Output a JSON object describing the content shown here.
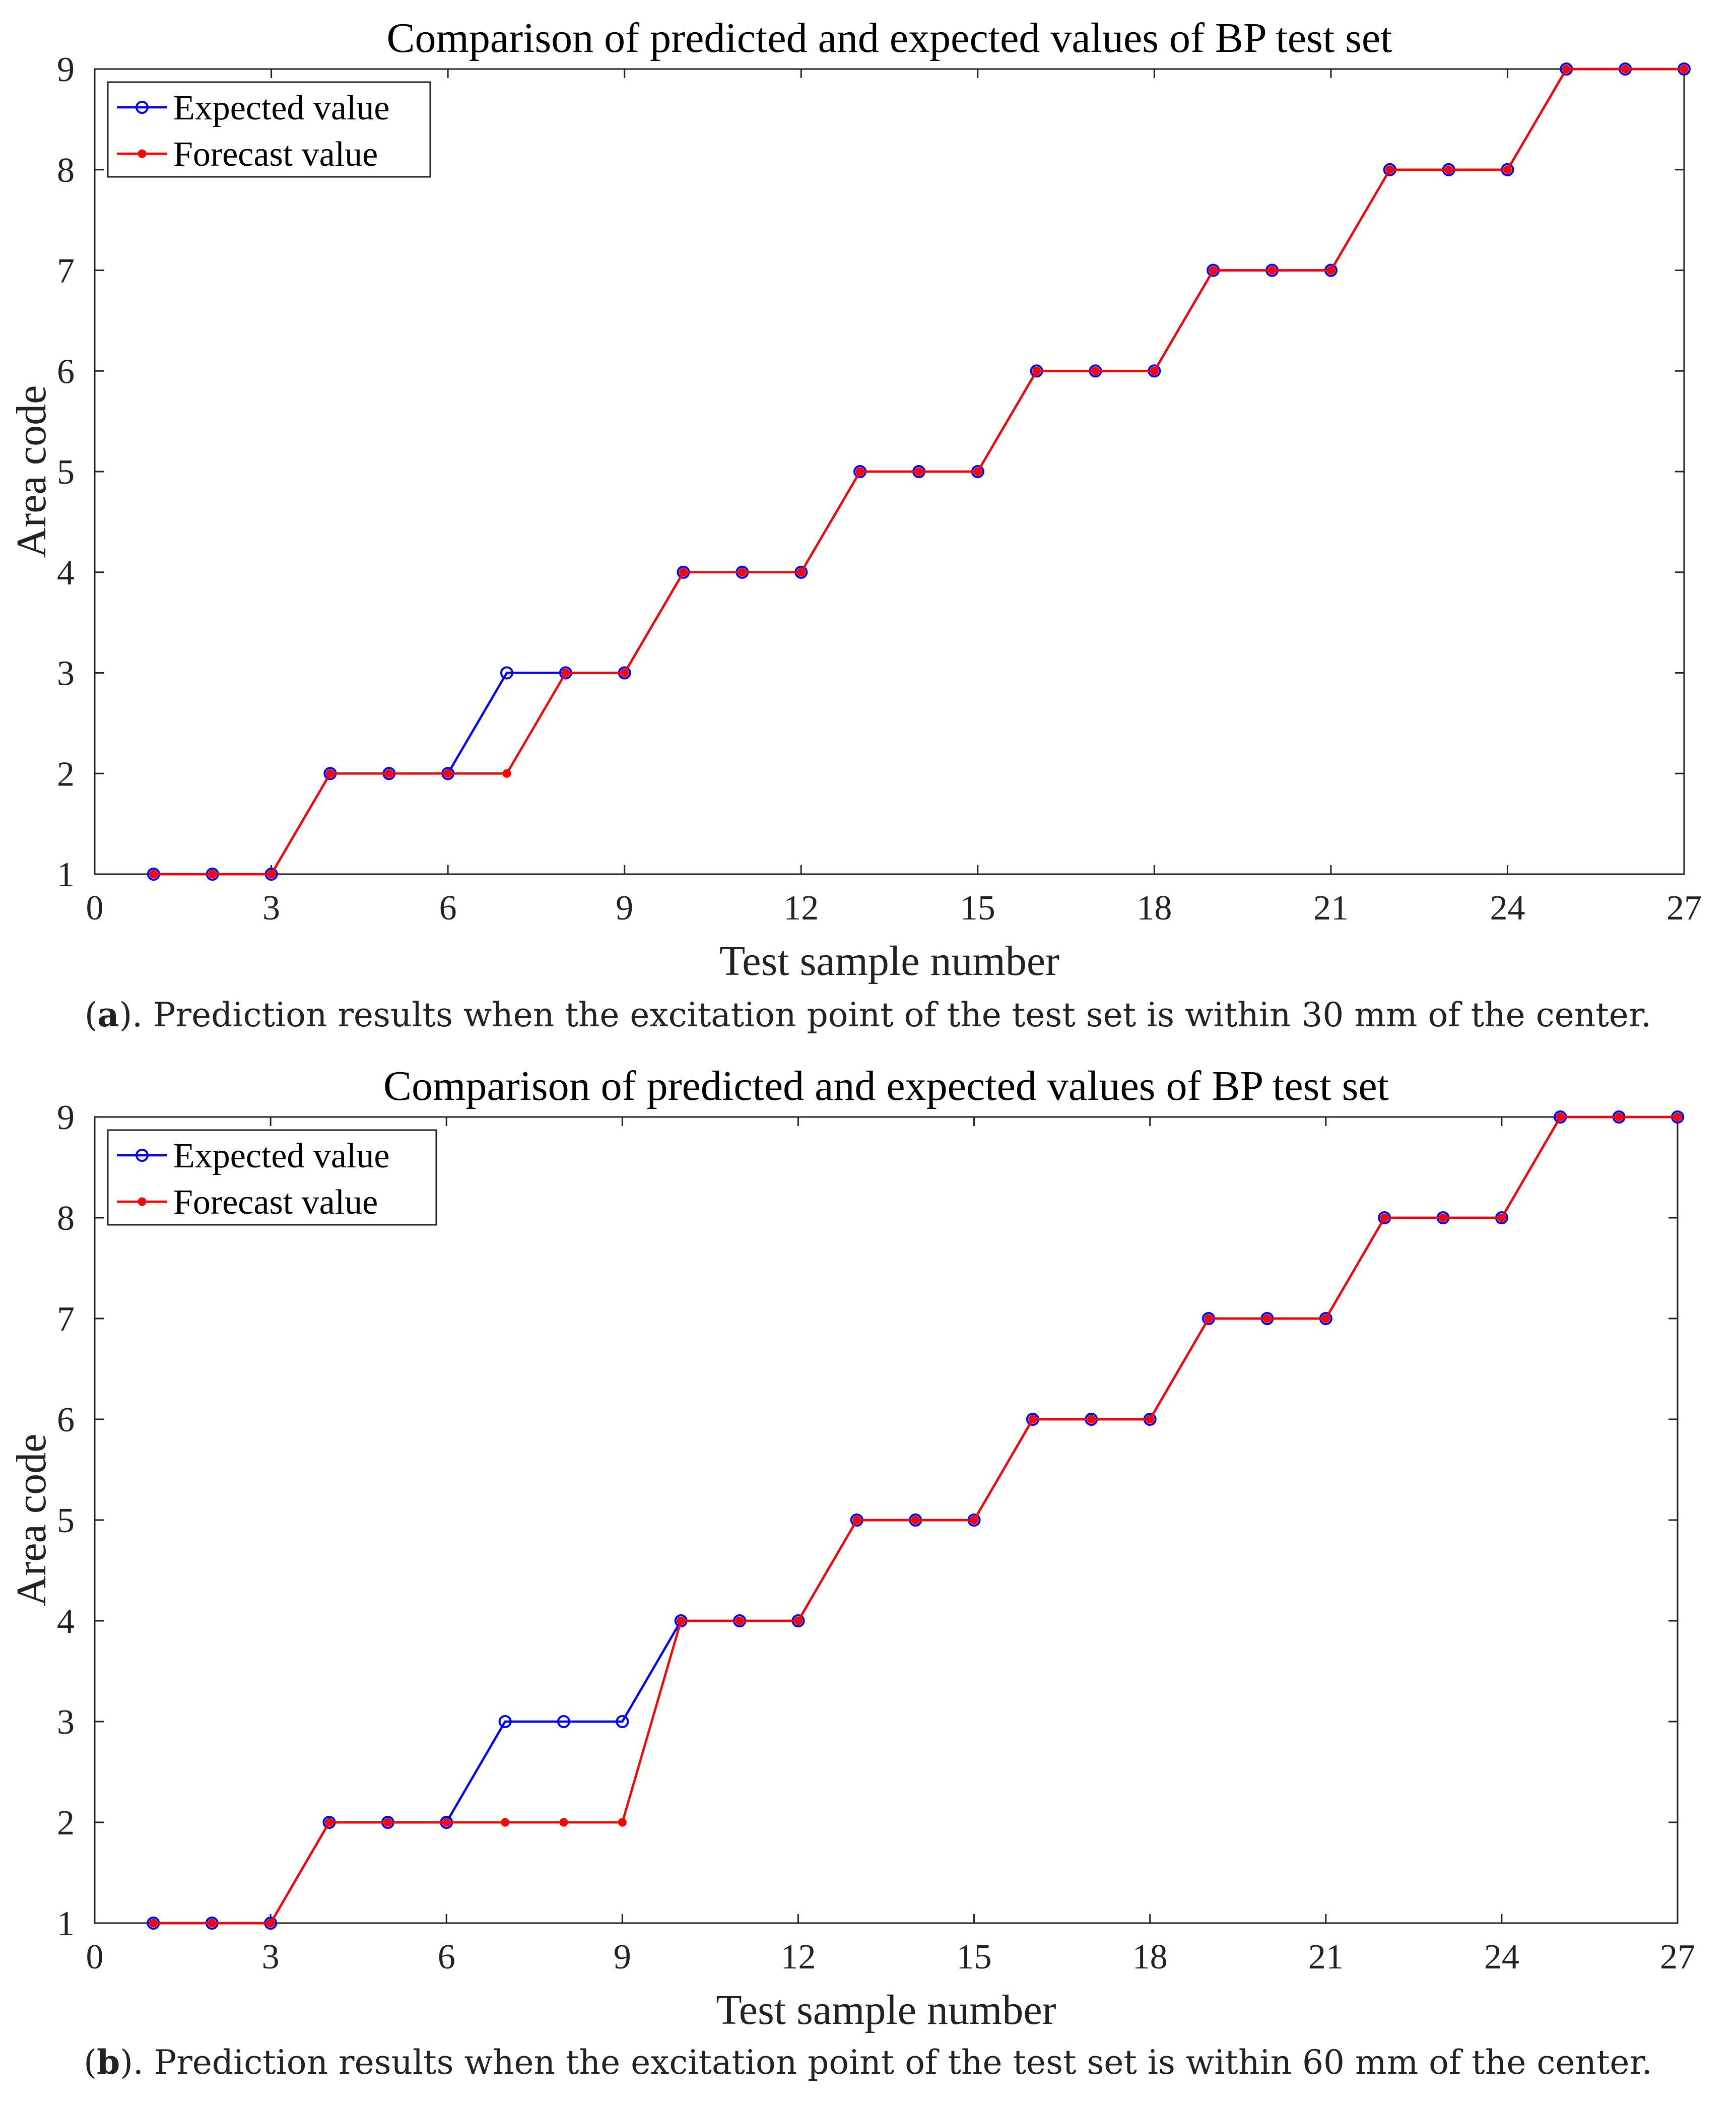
{
  "colors": {
    "expected": "#0000ff",
    "forecast": "#ff0000",
    "axis": "#222222",
    "grid": "#000000"
  },
  "legend_icons": {
    "expected": "circle-marker",
    "forecast": "asterisk-marker"
  },
  "chart_data": [
    {
      "id": "a",
      "type": "line",
      "title": "Comparison of predicted and expected values of BP test set",
      "xlabel": "Test sample number",
      "ylabel": "Area code",
      "xlim": [
        0,
        27
      ],
      "ylim": [
        1,
        9
      ],
      "xticks": [
        0,
        3,
        6,
        9,
        12,
        15,
        18,
        21,
        24,
        27
      ],
      "yticks": [
        1,
        2,
        3,
        4,
        5,
        6,
        7,
        8,
        9
      ],
      "legend_position": "top-left",
      "x": [
        1,
        2,
        3,
        4,
        5,
        6,
        7,
        8,
        9,
        10,
        11,
        12,
        13,
        14,
        15,
        16,
        17,
        18,
        19,
        20,
        21,
        22,
        23,
        24,
        25,
        26,
        27
      ],
      "series": [
        {
          "name": "Expected value",
          "key": "expected",
          "values": [
            1,
            1,
            1,
            2,
            2,
            2,
            3,
            3,
            3,
            4,
            4,
            4,
            5,
            5,
            5,
            6,
            6,
            6,
            7,
            7,
            7,
            8,
            8,
            8,
            9,
            9,
            9
          ]
        },
        {
          "name": "Forecast value",
          "key": "forecast",
          "values": [
            1,
            1,
            1,
            2,
            2,
            2,
            2,
            3,
            3,
            4,
            4,
            4,
            5,
            5,
            5,
            6,
            6,
            6,
            7,
            7,
            7,
            8,
            8,
            8,
            9,
            9,
            9
          ]
        }
      ],
      "caption_label": "a",
      "caption_text": "). Prediction results when the excitation point of the test set is within 30 mm of the center."
    },
    {
      "id": "b",
      "type": "line",
      "title": "Comparison of predicted and expected values of BP test set",
      "xlabel": "Test sample number",
      "ylabel": "Area code",
      "xlim": [
        0,
        27
      ],
      "ylim": [
        1,
        9
      ],
      "xticks": [
        0,
        3,
        6,
        9,
        12,
        15,
        18,
        21,
        24,
        27
      ],
      "yticks": [
        1,
        2,
        3,
        4,
        5,
        6,
        7,
        8,
        9
      ],
      "legend_position": "top-left",
      "x": [
        1,
        2,
        3,
        4,
        5,
        6,
        7,
        8,
        9,
        10,
        11,
        12,
        13,
        14,
        15,
        16,
        17,
        18,
        19,
        20,
        21,
        22,
        23,
        24,
        25,
        26,
        27
      ],
      "series": [
        {
          "name": "Expected value",
          "key": "expected",
          "values": [
            1,
            1,
            1,
            2,
            2,
            2,
            3,
            3,
            3,
            4,
            4,
            4,
            5,
            5,
            5,
            6,
            6,
            6,
            7,
            7,
            7,
            8,
            8,
            8,
            9,
            9,
            9
          ]
        },
        {
          "name": "Forecast value",
          "key": "forecast",
          "values": [
            1,
            1,
            1,
            2,
            2,
            2,
            2,
            2,
            2,
            4,
            4,
            4,
            5,
            5,
            5,
            6,
            6,
            6,
            7,
            7,
            7,
            8,
            8,
            8,
            9,
            9,
            9
          ]
        }
      ],
      "caption_label": "b",
      "caption_text": "). Prediction results when the excitation point of the test set is within 60 mm of the center."
    }
  ]
}
